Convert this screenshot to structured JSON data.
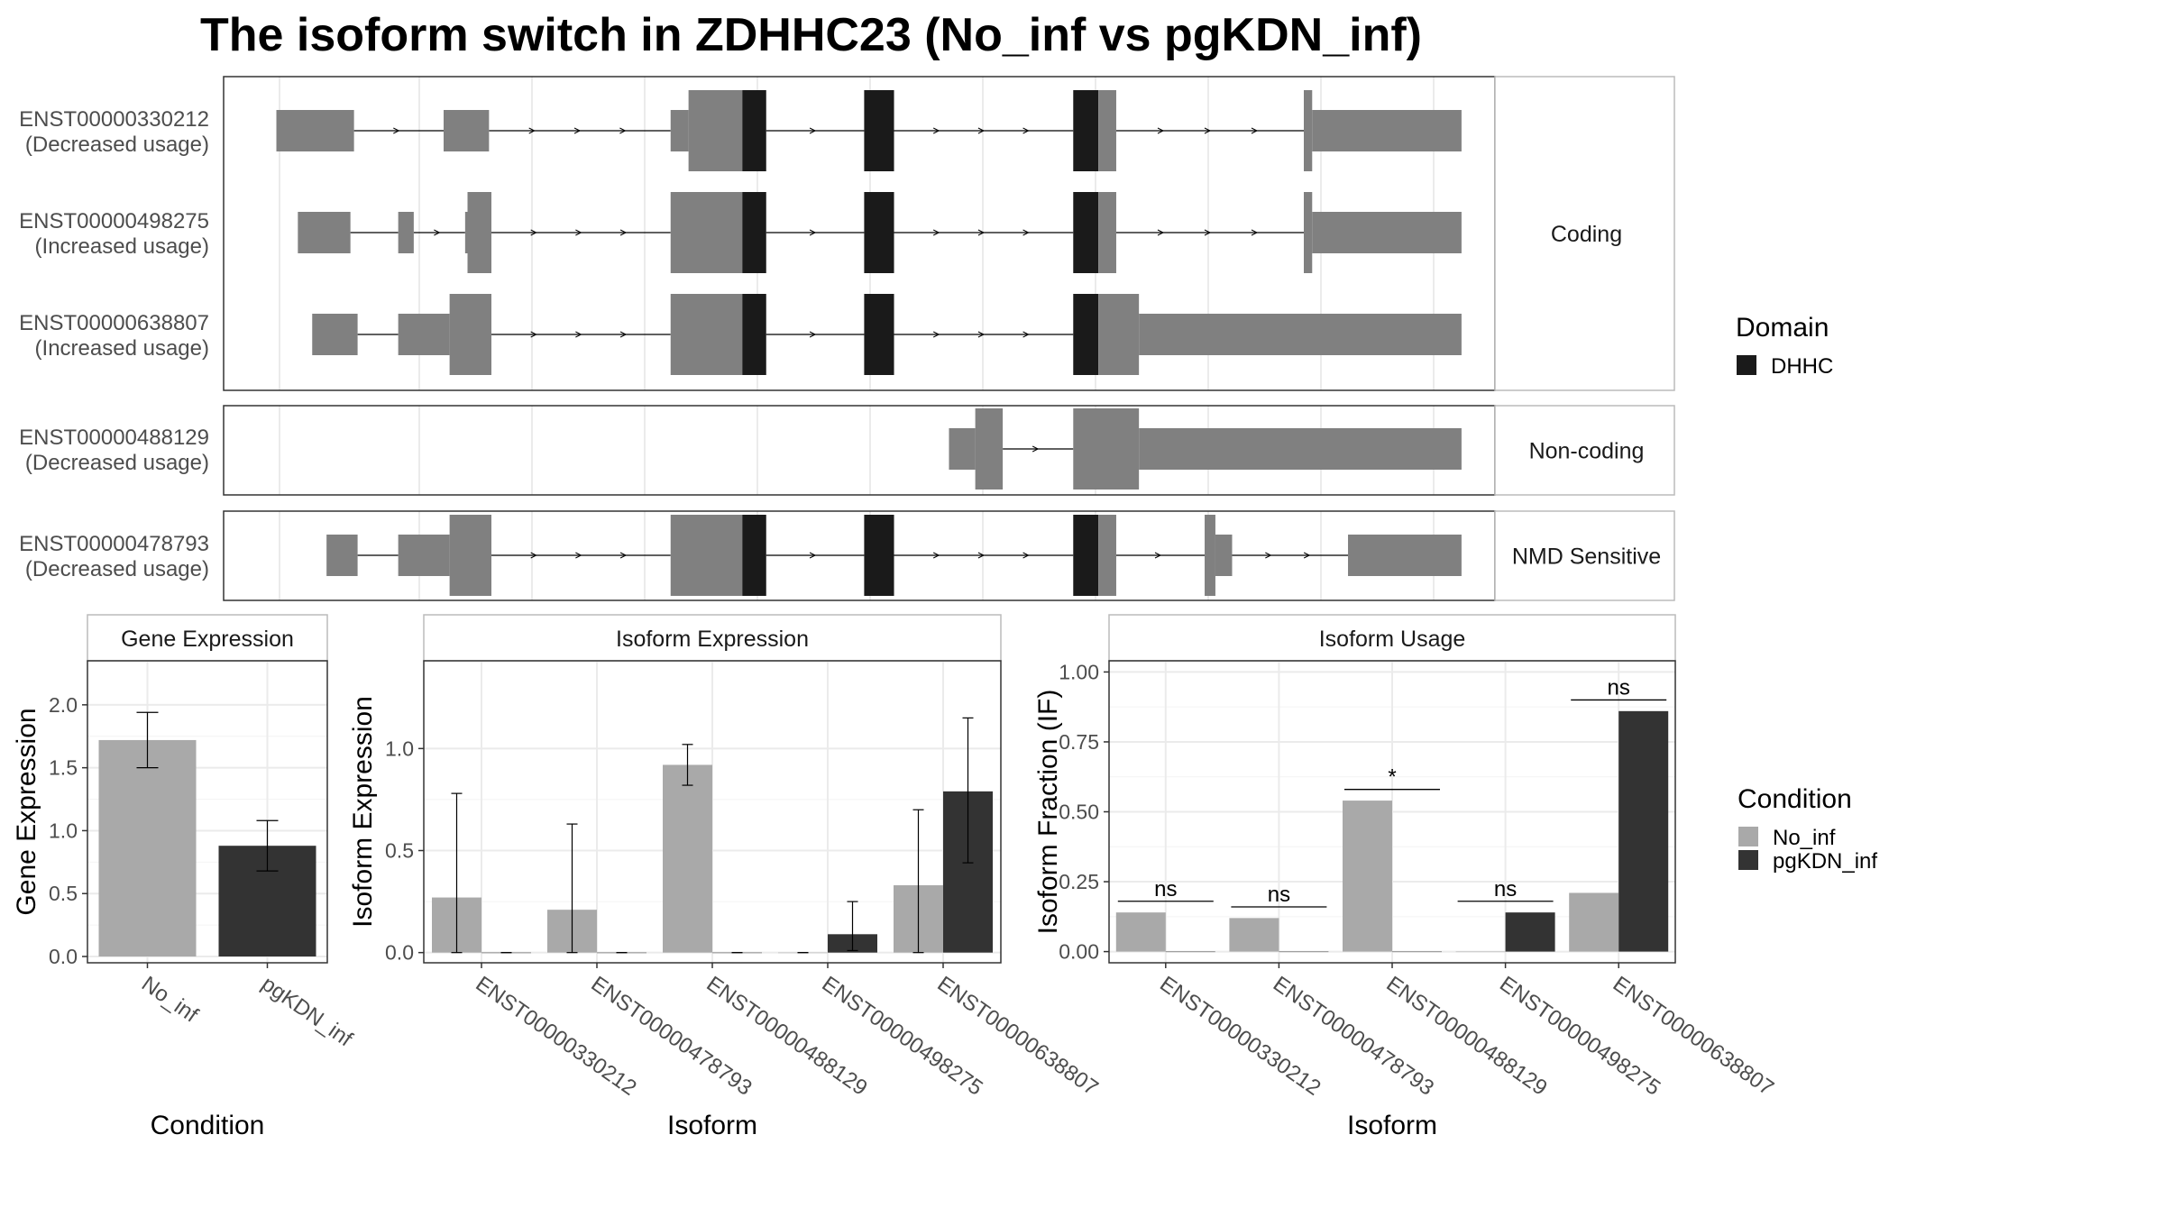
{
  "title": "The isoform switch in ZDHHC23 (No_inf vs pgKDN_inf)",
  "colors": {
    "exon": "#808080",
    "domain": "#1a1a1a",
    "no_inf": "#a9a9a9",
    "pgkdn_inf": "#333333",
    "grid": "#ebebeb",
    "strip": "#ffffff"
  },
  "structure": {
    "genomic_range": [
      0,
      1000
    ],
    "groups": [
      {
        "label": "Coding",
        "isoforms": [
          {
            "id": "ENST00000330212",
            "usage": "(Decreased usage)",
            "exons": [
              {
                "s": 20,
                "e": 85,
                "type": "utr"
              },
              {
                "s": 160,
                "e": 198,
                "type": "utr"
              },
              {
                "s": 350,
                "e": 365,
                "type": "utr"
              },
              {
                "s": 365,
                "e": 410,
                "type": "cds"
              },
              {
                "s": 410,
                "e": 430,
                "type": "domain"
              },
              {
                "s": 512,
                "e": 537,
                "type": "domain"
              },
              {
                "s": 687,
                "e": 708,
                "type": "domain"
              },
              {
                "s": 708,
                "e": 723,
                "type": "cds"
              },
              {
                "s": 880,
                "e": 887,
                "type": "cds"
              },
              {
                "s": 887,
                "e": 1012,
                "type": "utr"
              }
            ]
          },
          {
            "id": "ENST00000498275",
            "usage": "(Increased usage)",
            "exons": [
              {
                "s": 38,
                "e": 82,
                "type": "utr"
              },
              {
                "s": 122,
                "e": 135,
                "type": "utr"
              },
              {
                "s": 178,
                "e": 180,
                "type": "utr"
              },
              {
                "s": 180,
                "e": 200,
                "type": "cds"
              },
              {
                "s": 350,
                "e": 410,
                "type": "cds"
              },
              {
                "s": 410,
                "e": 430,
                "type": "domain"
              },
              {
                "s": 512,
                "e": 537,
                "type": "domain"
              },
              {
                "s": 687,
                "e": 708,
                "type": "domain"
              },
              {
                "s": 708,
                "e": 723,
                "type": "cds"
              },
              {
                "s": 880,
                "e": 887,
                "type": "cds"
              },
              {
                "s": 887,
                "e": 1012,
                "type": "utr"
              }
            ]
          },
          {
            "id": "ENST00000638807",
            "usage": "(Increased usage)",
            "exons": [
              {
                "s": 50,
                "e": 88,
                "type": "utr"
              },
              {
                "s": 122,
                "e": 165,
                "type": "utr"
              },
              {
                "s": 165,
                "e": 200,
                "type": "cds"
              },
              {
                "s": 350,
                "e": 410,
                "type": "cds"
              },
              {
                "s": 410,
                "e": 430,
                "type": "domain"
              },
              {
                "s": 512,
                "e": 537,
                "type": "domain"
              },
              {
                "s": 687,
                "e": 708,
                "type": "domain"
              },
              {
                "s": 708,
                "e": 742,
                "type": "cds"
              },
              {
                "s": 742,
                "e": 1012,
                "type": "utr"
              }
            ]
          }
        ]
      },
      {
        "label": "Non-coding",
        "isoforms": [
          {
            "id": "ENST00000488129",
            "usage": "(Decreased usage)",
            "exons": [
              {
                "s": 583,
                "e": 605,
                "type": "utr"
              },
              {
                "s": 605,
                "e": 628,
                "type": "cds"
              },
              {
                "s": 687,
                "e": 742,
                "type": "cds"
              },
              {
                "s": 742,
                "e": 1012,
                "type": "utr"
              }
            ]
          }
        ]
      },
      {
        "label": "NMD Sensitive",
        "isoforms": [
          {
            "id": "ENST00000478793",
            "usage": "(Decreased usage)",
            "exons": [
              {
                "s": 62,
                "e": 88,
                "type": "utr"
              },
              {
                "s": 122,
                "e": 165,
                "type": "utr"
              },
              {
                "s": 165,
                "e": 200,
                "type": "cds"
              },
              {
                "s": 350,
                "e": 410,
                "type": "cds"
              },
              {
                "s": 410,
                "e": 430,
                "type": "domain"
              },
              {
                "s": 512,
                "e": 537,
                "type": "domain"
              },
              {
                "s": 687,
                "e": 708,
                "type": "domain"
              },
              {
                "s": 708,
                "e": 723,
                "type": "cds"
              },
              {
                "s": 797,
                "e": 806,
                "type": "cds"
              },
              {
                "s": 806,
                "e": 820,
                "type": "utr"
              },
              {
                "s": 917,
                "e": 1012,
                "type": "utr"
              }
            ]
          }
        ]
      }
    ]
  },
  "legend_domain": {
    "title": "Domain",
    "items": [
      {
        "label": "DHHC",
        "color": "#1a1a1a"
      }
    ]
  },
  "legend_condition": {
    "title": "Condition",
    "items": [
      {
        "label": "No_inf",
        "color": "#a9a9a9"
      },
      {
        "label": "pgKDN_inf",
        "color": "#333333"
      }
    ]
  },
  "chart_data": [
    {
      "type": "bar",
      "title": "Gene Expression",
      "xlabel": "Condition",
      "ylabel": "Gene Expression",
      "categories": [
        "No_inf",
        "pgKDN_inf"
      ],
      "values": [
        1.72,
        0.88
      ],
      "error": [
        [
          1.5,
          1.94
        ],
        [
          0.68,
          1.08
        ]
      ],
      "ylim": [
        -0.05,
        2.35
      ],
      "yticks": [
        "0.0",
        "0.5",
        "1.0",
        "1.5",
        "2.0"
      ],
      "ytick_values": [
        0,
        0.5,
        1.0,
        1.5,
        2.0
      ]
    },
    {
      "type": "bar",
      "title": "Isoform Expression",
      "xlabel": "Isoform",
      "ylabel": "Isoform Expression",
      "categories": [
        "ENST00000330212",
        "ENST00000478793",
        "ENST00000488129",
        "ENST00000498275",
        "ENST00000638807"
      ],
      "series": [
        {
          "name": "No_inf",
          "values": [
            0.27,
            0.21,
            0.92,
            0.0,
            0.33
          ],
          "error": [
            [
              0,
              0.78
            ],
            [
              0,
              0.63
            ],
            [
              0.82,
              1.02
            ],
            [
              0,
              0
            ],
            [
              0,
              0.7
            ]
          ]
        },
        {
          "name": "pgKDN_inf",
          "values": [
            0.0,
            0.0,
            0.0,
            0.09,
            0.79
          ],
          "error": [
            [
              0,
              0
            ],
            [
              0,
              0
            ],
            [
              0,
              0
            ],
            [
              0.01,
              0.25
            ],
            [
              0.44,
              1.15
            ]
          ]
        }
      ],
      "ylim": [
        -0.05,
        1.43
      ],
      "yticks": [
        "0.0",
        "0.5",
        "1.0"
      ],
      "ytick_values": [
        0,
        0.5,
        1.0
      ]
    },
    {
      "type": "bar",
      "title": "Isoform Usage",
      "xlabel": "Isoform",
      "ylabel": "Isoform Fraction (IF)",
      "categories": [
        "ENST00000330212",
        "ENST00000478793",
        "ENST00000488129",
        "ENST00000498275",
        "ENST00000638807"
      ],
      "series": [
        {
          "name": "No_inf",
          "values": [
            0.14,
            0.12,
            0.54,
            0.0,
            0.21
          ]
        },
        {
          "name": "pgKDN_inf",
          "values": [
            0.0,
            0.0,
            0.0,
            0.14,
            0.86
          ]
        }
      ],
      "significance": [
        "ns",
        "ns",
        "*",
        "ns",
        "ns"
      ],
      "sig_line_y": [
        0.18,
        0.16,
        0.58,
        0.18,
        0.9
      ],
      "ylim": [
        -0.04,
        1.04
      ],
      "yticks": [
        "0.00",
        "0.25",
        "0.50",
        "0.75",
        "1.00"
      ],
      "ytick_values": [
        0,
        0.25,
        0.5,
        0.75,
        1.0
      ]
    }
  ]
}
